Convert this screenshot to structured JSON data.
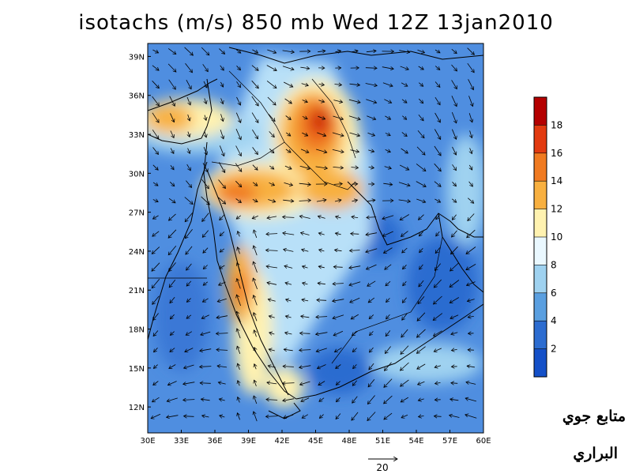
{
  "title": "isotachs (m/s) 850 mb Wed 12Z 13jan2010",
  "lon_labels": [
    "30E",
    "33E",
    "36E",
    "39E",
    "42E",
    "45E",
    "48E",
    "51E",
    "54E",
    "57E",
    "60E"
  ],
  "lat_labels": [
    "39N",
    "36N",
    "33N",
    "30N",
    "27N",
    "24N",
    "21N",
    "18N",
    "15N",
    "12N"
  ],
  "colorbar": {
    "labels": [
      "18",
      "16",
      "14",
      "12",
      "10",
      "8",
      "6",
      "4",
      "2"
    ],
    "colors": [
      "#b40000",
      "#e23a10",
      "#f07a20",
      "#f8b040",
      "#fff2b0",
      "#eaf8ff",
      "#9fd2f0",
      "#5a9fe0",
      "#2c6cd0",
      "#1450c8"
    ]
  },
  "vector_reference": {
    "value": "20"
  },
  "watermark": {
    "line1": "متابع جوي",
    "line2": "البراري"
  },
  "chart_data": {
    "type": "heatmap",
    "title": "isotachs (m/s) 850 mb Wed 12Z 13jan2010",
    "xlabel": "",
    "ylabel": "",
    "xlim": [
      30,
      60
    ],
    "ylim": [
      10,
      40
    ],
    "color_levels": [
      0,
      2,
      4,
      6,
      8,
      10,
      12,
      14,
      16,
      18,
      20
    ],
    "jets": [
      {
        "lon": 45.0,
        "lat": 33.5,
        "speed": 18
      },
      {
        "lon": 31.0,
        "lat": 33.5,
        "speed": 14
      },
      {
        "lon": 37.0,
        "lat": 28.0,
        "speed": 14
      },
      {
        "lon": 38.5,
        "lat": 21.0,
        "speed": 16
      },
      {
        "lon": 42.0,
        "lat": 14.5,
        "speed": 11
      }
    ]
  }
}
